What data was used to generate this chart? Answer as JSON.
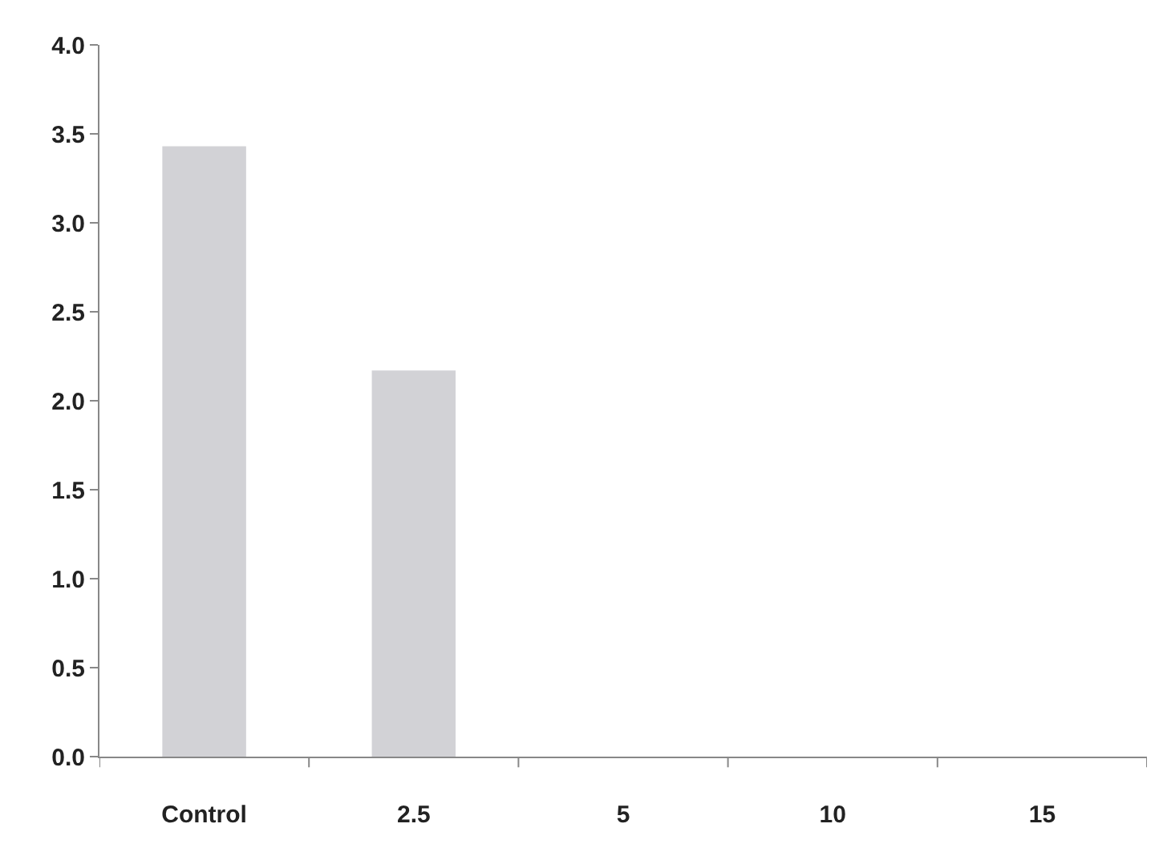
{
  "chart_data": {
    "type": "bar",
    "categories": [
      "Control",
      "2.5",
      "5",
      "10",
      "15"
    ],
    "values": [
      3.43,
      2.17,
      0,
      0,
      0
    ],
    "color": "#d2d2d6",
    "ylim": [
      0,
      4.0
    ],
    "yticks": [
      {
        "value": 0,
        "label": "0.0"
      },
      {
        "value": 0.5,
        "label": "0.5"
      },
      {
        "value": 1,
        "label": "1.0"
      },
      {
        "value": 1.5,
        "label": "1.5"
      },
      {
        "value": 2,
        "label": "2.0"
      },
      {
        "value": 2.5,
        "label": "2.5"
      },
      {
        "value": 3,
        "label": "3.0"
      },
      {
        "value": 3.5,
        "label": "3.5"
      },
      {
        "value": 4,
        "label": "4.0"
      }
    ]
  }
}
